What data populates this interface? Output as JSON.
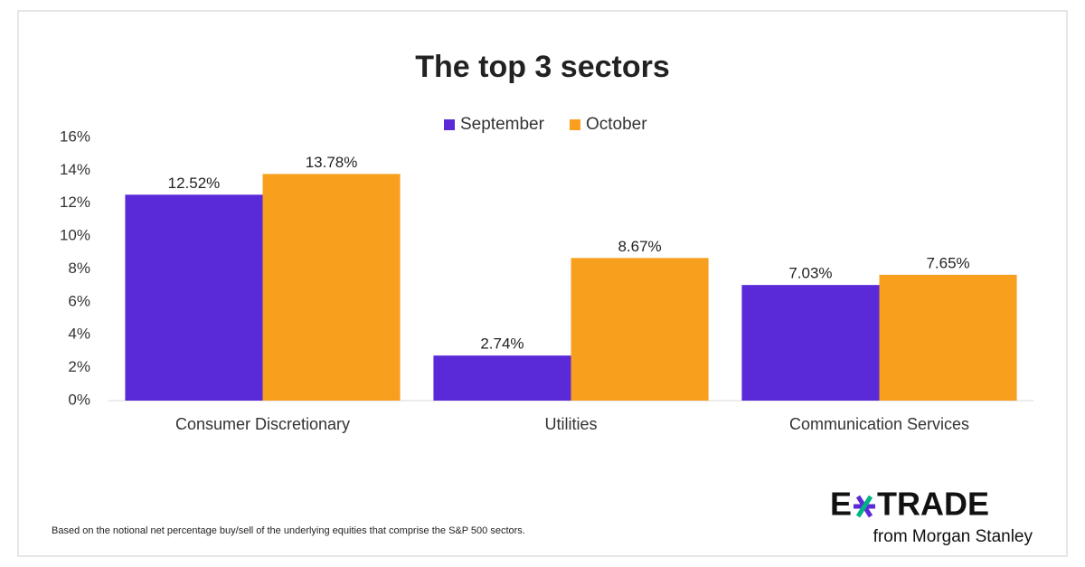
{
  "chart_data": {
    "type": "bar",
    "title": "The top 3 sectors",
    "categories": [
      "Consumer Discretionary",
      "Utilities",
      "Communication Services"
    ],
    "series": [
      {
        "name": "September",
        "color": "#5b2ad8",
        "values": [
          12.52,
          2.74,
          7.03
        ],
        "value_labels": [
          "12.52%",
          "2.74%",
          "7.03%"
        ]
      },
      {
        "name": "October",
        "color": "#f99f1e",
        "values": [
          13.78,
          8.67,
          7.65
        ],
        "value_labels": [
          "13.78%",
          "8.67%",
          "7.65%"
        ]
      }
    ],
    "ylim": [
      0,
      16
    ],
    "yticks": [
      {
        "value": 0,
        "label": "0%"
      },
      {
        "value": 2,
        "label": "2%"
      },
      {
        "value": 4,
        "label": "4%"
      },
      {
        "value": 6,
        "label": "6%"
      },
      {
        "value": 8,
        "label": "8%"
      },
      {
        "value": 10,
        "label": "10%"
      },
      {
        "value": 12,
        "label": "12%"
      },
      {
        "value": 14,
        "label": "14%"
      },
      {
        "value": 16,
        "label": "16%"
      }
    ],
    "grid": false,
    "legend": "top"
  },
  "footnote": "Based on the notional net percentage buy/sell of the underlying equities that comprise the S&P 500 sectors.",
  "logo": {
    "brand_prefix": "E",
    "brand_suffix": "TRADE",
    "tagline": "from Morgan Stanley"
  }
}
